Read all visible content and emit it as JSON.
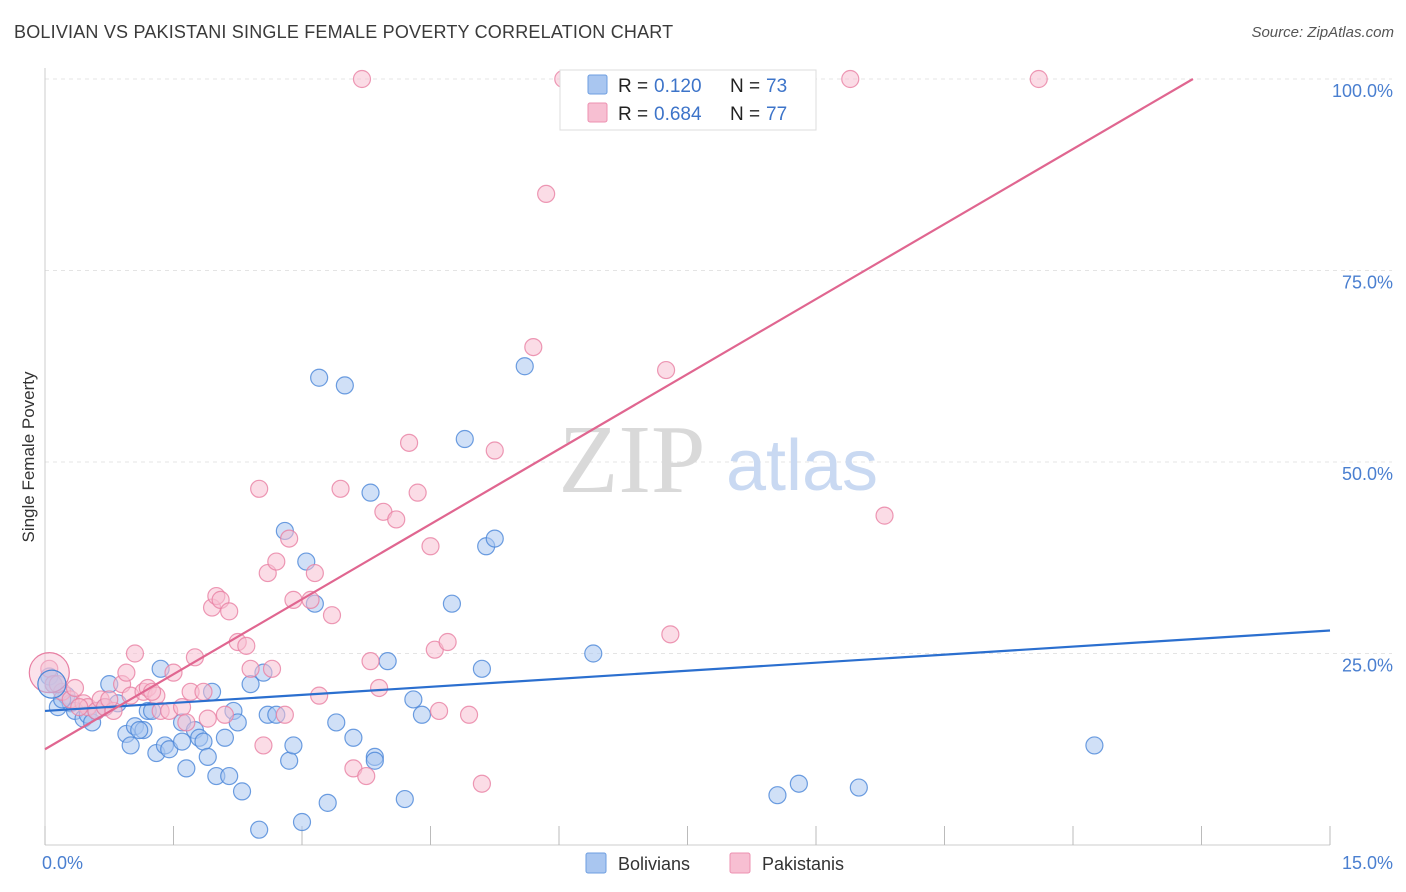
{
  "header": {
    "title": "BOLIVIAN VS PAKISTANI SINGLE FEMALE POVERTY CORRELATION CHART",
    "source": "Source: ZipAtlas.com"
  },
  "watermark": {
    "zip": "ZIP",
    "atlas": "atlas"
  },
  "legend_top": {
    "rows": [
      {
        "r_label": "R =",
        "r_value": "0.120",
        "n_label": "N =",
        "n_value": "73",
        "color": "#8fb4ea"
      },
      {
        "r_label": "R =",
        "r_value": "0.684",
        "n_label": "N =",
        "n_value": "77",
        "color": "#f3a9c2"
      }
    ]
  },
  "legend_bottom": {
    "items": [
      {
        "label": "Bolivians",
        "color": "#8fb4ea"
      },
      {
        "label": "Pakistanis",
        "color": "#f3a9c2"
      }
    ]
  },
  "chart_data": {
    "type": "scatter",
    "title": "BOLIVIAN VS PAKISTANI SINGLE FEMALE POVERTY CORRELATION CHART",
    "xlabel": "",
    "ylabel": "Single Female Poverty",
    "xlim": [
      0,
      15
    ],
    "ylim": [
      0,
      100
    ],
    "x_tick_labels": [
      "0.0%",
      "15.0%"
    ],
    "y_ticks": [
      25,
      50,
      75,
      100
    ],
    "y_tick_labels": [
      "25.0%",
      "50.0%",
      "75.0%",
      "100.0%"
    ],
    "grid": true,
    "legend_position": "top-center",
    "series": [
      {
        "name": "Bolivians",
        "color": "#4a86d8",
        "fill": "#a9c6f0",
        "trend": {
          "x": [
            0,
            15
          ],
          "y": [
            17.5,
            28.0
          ],
          "color": "#2b6fcf"
        },
        "points": [
          [
            0.1,
            21
          ],
          [
            0.15,
            18
          ],
          [
            0.25,
            19.5
          ],
          [
            0.3,
            18.5
          ],
          [
            0.35,
            17.5
          ],
          [
            0.45,
            16.5
          ],
          [
            0.5,
            17
          ],
          [
            0.55,
            16
          ],
          [
            0.7,
            18
          ],
          [
            0.75,
            21
          ],
          [
            0.85,
            18.5
          ],
          [
            0.95,
            14.5
          ],
          [
            1.0,
            13
          ],
          [
            1.05,
            15.5
          ],
          [
            1.15,
            15
          ],
          [
            1.2,
            17.5
          ],
          [
            1.25,
            17.5
          ],
          [
            1.3,
            12
          ],
          [
            1.35,
            23
          ],
          [
            1.4,
            13
          ],
          [
            1.45,
            12.5
          ],
          [
            1.6,
            13.5
          ],
          [
            1.6,
            16
          ],
          [
            1.65,
            10
          ],
          [
            1.75,
            15
          ],
          [
            1.8,
            14
          ],
          [
            1.85,
            13.5
          ],
          [
            1.9,
            11.5
          ],
          [
            1.95,
            20
          ],
          [
            2.0,
            9
          ],
          [
            2.1,
            14
          ],
          [
            2.15,
            9
          ],
          [
            2.2,
            17.5
          ],
          [
            2.25,
            16
          ],
          [
            2.3,
            7
          ],
          [
            2.4,
            21
          ],
          [
            2.5,
            2
          ],
          [
            2.55,
            22.5
          ],
          [
            2.6,
            17
          ],
          [
            2.7,
            17
          ],
          [
            2.8,
            41
          ],
          [
            2.85,
            11
          ],
          [
            2.9,
            13
          ],
          [
            3.0,
            3
          ],
          [
            3.05,
            37
          ],
          [
            3.15,
            31.5
          ],
          [
            3.2,
            61
          ],
          [
            3.3,
            5.5
          ],
          [
            3.4,
            16
          ],
          [
            3.5,
            60
          ],
          [
            3.6,
            14
          ],
          [
            3.8,
            46
          ],
          [
            3.85,
            11.5
          ],
          [
            3.85,
            11
          ],
          [
            4.0,
            24
          ],
          [
            4.2,
            6
          ],
          [
            4.3,
            19
          ],
          [
            4.4,
            17
          ],
          [
            4.75,
            31.5
          ],
          [
            4.9,
            53
          ],
          [
            5.1,
            23
          ],
          [
            5.15,
            39
          ],
          [
            5.25,
            40
          ],
          [
            5.6,
            62.5
          ],
          [
            6.4,
            25
          ],
          [
            8.55,
            6.5
          ],
          [
            8.8,
            8
          ],
          [
            9.5,
            7.5
          ],
          [
            12.25,
            13
          ],
          [
            0.05,
            22
          ],
          [
            0.2,
            19
          ],
          [
            0.6,
            17.5
          ],
          [
            1.1,
            15
          ]
        ]
      },
      {
        "name": "Pakistanis",
        "color": "#e87fa3",
        "fill": "#f7bfd2",
        "trend": {
          "x": [
            0,
            13.4
          ],
          "y": [
            12.5,
            100
          ],
          "color": "#e06690"
        },
        "points": [
          [
            0.05,
            23
          ],
          [
            0.1,
            21
          ],
          [
            0.2,
            20
          ],
          [
            0.3,
            19
          ],
          [
            0.35,
            20.5
          ],
          [
            0.45,
            18.5
          ],
          [
            0.5,
            18
          ],
          [
            0.6,
            17.5
          ],
          [
            0.65,
            19
          ],
          [
            0.7,
            18
          ],
          [
            0.8,
            17.5
          ],
          [
            0.9,
            21
          ],
          [
            0.95,
            22.5
          ],
          [
            1.0,
            19.5
          ],
          [
            1.05,
            25
          ],
          [
            1.15,
            20
          ],
          [
            1.2,
            20.5
          ],
          [
            1.3,
            19.5
          ],
          [
            1.35,
            17.5
          ],
          [
            1.45,
            17.5
          ],
          [
            1.5,
            22.5
          ],
          [
            1.6,
            18
          ],
          [
            1.65,
            16
          ],
          [
            1.7,
            20
          ],
          [
            1.75,
            24.5
          ],
          [
            1.85,
            20
          ],
          [
            1.9,
            16.5
          ],
          [
            1.95,
            31
          ],
          [
            2.0,
            32.5
          ],
          [
            2.05,
            32
          ],
          [
            2.1,
            17
          ],
          [
            2.15,
            30.5
          ],
          [
            2.25,
            26.5
          ],
          [
            2.35,
            26
          ],
          [
            2.4,
            23
          ],
          [
            2.5,
            46.5
          ],
          [
            2.55,
            13
          ],
          [
            2.6,
            35.5
          ],
          [
            2.65,
            23
          ],
          [
            2.7,
            37
          ],
          [
            2.8,
            17
          ],
          [
            2.85,
            40
          ],
          [
            2.9,
            32
          ],
          [
            3.1,
            32
          ],
          [
            3.15,
            35.5
          ],
          [
            3.2,
            19.5
          ],
          [
            3.35,
            30
          ],
          [
            3.45,
            46.5
          ],
          [
            3.6,
            10
          ],
          [
            3.7,
            100
          ],
          [
            3.75,
            9
          ],
          [
            3.8,
            24
          ],
          [
            3.9,
            20.5
          ],
          [
            3.95,
            43.5
          ],
          [
            4.1,
            42.5
          ],
          [
            4.25,
            52.5
          ],
          [
            4.35,
            46
          ],
          [
            4.5,
            39
          ],
          [
            4.55,
            25.5
          ],
          [
            4.7,
            26.5
          ],
          [
            4.6,
            17.5
          ],
          [
            4.95,
            17
          ],
          [
            5.1,
            8
          ],
          [
            5.25,
            51.5
          ],
          [
            5.7,
            65
          ],
          [
            5.85,
            85
          ],
          [
            6.05,
            100
          ],
          [
            6.2,
            100
          ],
          [
            7.25,
            62
          ],
          [
            7.3,
            27.5
          ],
          [
            9.4,
            100
          ],
          [
            9.8,
            43
          ],
          [
            11.6,
            100
          ],
          [
            0.15,
            21
          ],
          [
            0.4,
            18
          ],
          [
            0.75,
            19
          ],
          [
            1.25,
            20
          ]
        ]
      }
    ]
  }
}
